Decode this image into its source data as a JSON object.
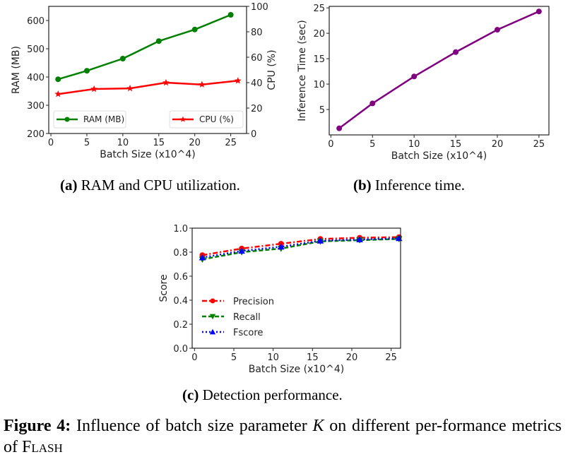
{
  "chart_data": [
    {
      "id": "a",
      "type": "line",
      "title": "",
      "xlabel": "Batch Size (x10^4)",
      "ylabel": "RAM (MB)",
      "ylabel_right": "CPU (%)",
      "xlim": [
        -0.3,
        27.2
      ],
      "ylim": [
        200,
        650
      ],
      "ylim_right": [
        0,
        100
      ],
      "xticks": [
        0,
        5,
        10,
        15,
        20,
        25
      ],
      "yticks": [
        200,
        300,
        400,
        500,
        600
      ],
      "yticks_right": [
        0,
        20,
        40,
        60,
        80,
        100
      ],
      "grid": false,
      "series": [
        {
          "name": "RAM (MB)",
          "axis": "left",
          "color": "#008000",
          "marker": "circle",
          "x": [
            1,
            5,
            10,
            15,
            20,
            25
          ],
          "values": [
            392,
            422,
            465,
            527,
            568,
            620
          ],
          "legend_position": "lower-left"
        },
        {
          "name": "CPU (%)",
          "axis": "right",
          "color": "#ff0000",
          "marker": "star",
          "x": [
            1,
            6,
            11,
            16,
            21,
            26
          ],
          "values": [
            31,
            35,
            35.5,
            40,
            38.5,
            41.5
          ],
          "legend_position": "lower-right"
        }
      ],
      "caption_label": "(a)",
      "caption_text": " RAM and CPU utilization."
    },
    {
      "id": "b",
      "type": "line",
      "title": "",
      "xlabel": "Batch Size (x10^4)",
      "ylabel": "Inference Time (sec)",
      "xlim": [
        -0.2,
        26.2
      ],
      "ylim": [
        0,
        25.3
      ],
      "xticks": [
        0,
        5,
        10,
        15,
        20,
        25
      ],
      "yticks": [
        5,
        10,
        15,
        20,
        25
      ],
      "grid": false,
      "series": [
        {
          "name": "Inference Time",
          "color": "#800080",
          "marker": "circle",
          "x": [
            1,
            5,
            10,
            15,
            20,
            25
          ],
          "values": [
            1.3,
            6.2,
            11.5,
            16.3,
            20.7,
            24.3
          ]
        }
      ],
      "caption_label": "(b)",
      "caption_text": " Inference time."
    },
    {
      "id": "c",
      "type": "line",
      "title": "",
      "xlabel": "Batch Size (x10^4)",
      "ylabel": "Score",
      "xlim": [
        -0.3,
        26.2
      ],
      "ylim": [
        0.0,
        1.0
      ],
      "xticks": [
        0,
        5,
        10,
        15,
        20,
        25
      ],
      "yticks": [
        0.0,
        0.2,
        0.4,
        0.6,
        0.8,
        1.0
      ],
      "ytick_labels": [
        "0.0",
        "0.2",
        "0.4",
        "0.6",
        "0.8",
        "1.0"
      ],
      "grid": false,
      "legend_position": "center-left",
      "series": [
        {
          "name": "Precision",
          "color": "#ff0000",
          "marker": "circle",
          "dash": "dashdot",
          "x": [
            1,
            6,
            11,
            16,
            21,
            26
          ],
          "values": [
            0.775,
            0.83,
            0.87,
            0.91,
            0.92,
            0.925
          ]
        },
        {
          "name": "Recall",
          "color": "#008000",
          "marker": "triangle-down",
          "dash": "dashed",
          "x": [
            1,
            6,
            11,
            16,
            21,
            26
          ],
          "values": [
            0.74,
            0.8,
            0.83,
            0.89,
            0.9,
            0.91
          ]
        },
        {
          "name": "Fscore",
          "color": "#0000ff",
          "marker": "triangle-up",
          "dash": "dotted",
          "x": [
            1,
            6,
            11,
            16,
            21,
            26
          ],
          "values": [
            0.755,
            0.81,
            0.845,
            0.895,
            0.905,
            0.915
          ]
        }
      ],
      "caption_label": "(c)",
      "caption_text": " Detection performance."
    }
  ],
  "figure_caption": {
    "label": "Figure 4:",
    "text_before": " Influence of batch size parameter ",
    "variable": "K",
    "text_after": " on different per-formance metrics of ",
    "system_name": "Flash"
  }
}
